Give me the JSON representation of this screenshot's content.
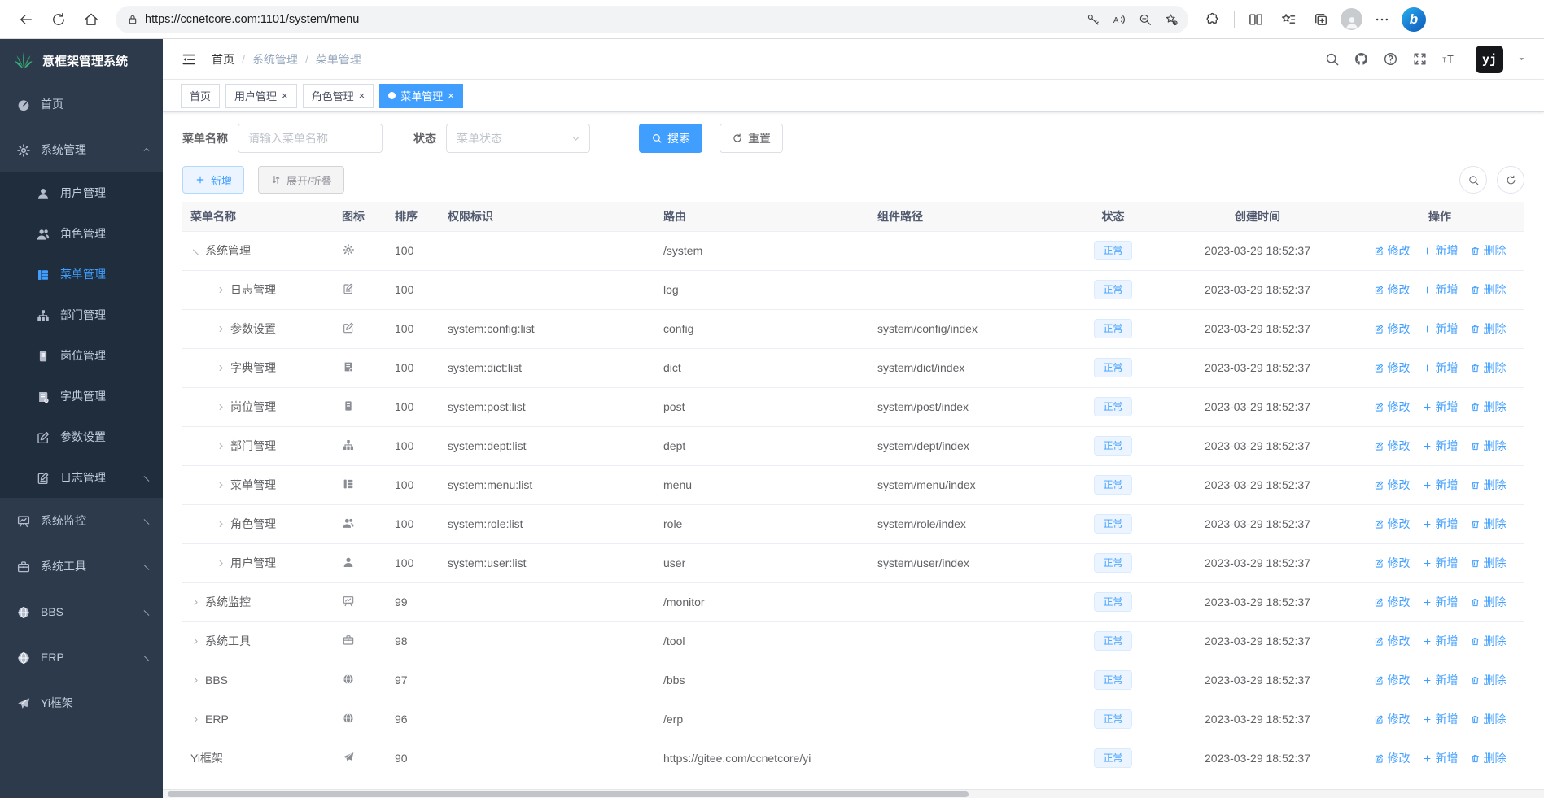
{
  "browser": {
    "url": "https://ccnetcore.com:1101/system/menu"
  },
  "app": {
    "title": "意框架管理系统"
  },
  "sidebar": {
    "items": [
      {
        "key": "home",
        "icon": "dashboard",
        "label": "首页"
      },
      {
        "key": "system",
        "icon": "gear",
        "label": "系统管理",
        "expanded": true,
        "caret": "up",
        "children": [
          {
            "key": "user",
            "icon": "user",
            "label": "用户管理"
          },
          {
            "key": "role",
            "icon": "users",
            "label": "角色管理"
          },
          {
            "key": "menu",
            "icon": "tree-table",
            "label": "菜单管理",
            "active": true
          },
          {
            "key": "dept",
            "icon": "tree",
            "label": "部门管理"
          },
          {
            "key": "post",
            "icon": "post",
            "label": "岗位管理"
          },
          {
            "key": "dict",
            "icon": "dict",
            "label": "字典管理"
          },
          {
            "key": "config",
            "icon": "edit",
            "label": "参数设置"
          },
          {
            "key": "log",
            "icon": "log",
            "label": "日志管理",
            "caret": "down"
          }
        ]
      },
      {
        "key": "monitor",
        "icon": "monitor",
        "label": "系统监控",
        "caret": "down"
      },
      {
        "key": "tool",
        "icon": "tool",
        "label": "系统工具",
        "caret": "down"
      },
      {
        "key": "bbs",
        "icon": "globe",
        "label": "BBS",
        "caret": "down"
      },
      {
        "key": "erp",
        "icon": "globe",
        "label": "ERP",
        "caret": "down"
      },
      {
        "key": "yi",
        "icon": "plane",
        "label": "Yi框架"
      }
    ]
  },
  "breadcrumb": [
    "首页",
    "系统管理",
    "菜单管理"
  ],
  "tabs": [
    {
      "key": "home",
      "label": "首页"
    },
    {
      "key": "user",
      "label": "用户管理",
      "closable": true
    },
    {
      "key": "role",
      "label": "角色管理",
      "closable": true
    },
    {
      "key": "menu",
      "label": "菜单管理",
      "closable": true,
      "active": true
    }
  ],
  "filters": {
    "name_label": "菜单名称",
    "name_placeholder": "请输入菜单名称",
    "status_label": "状态",
    "status_placeholder": "菜单状态",
    "search_label": "搜索",
    "reset_label": "重置"
  },
  "toolbar": {
    "add_label": "新增",
    "toggle_label": "展开/折叠"
  },
  "table": {
    "columns": [
      "菜单名称",
      "图标",
      "排序",
      "权限标识",
      "路由",
      "组件路径",
      "状态",
      "创建时间",
      "操作"
    ],
    "ops": [
      "修改",
      "新增",
      "删除"
    ],
    "rows": [
      {
        "label": "系统管理",
        "depth": 0,
        "toggle": "expanded",
        "icon": "gear",
        "order": "100",
        "perm": "",
        "route": "/system",
        "component": "",
        "status": "正常",
        "created": "2023-03-29 18:52:37"
      },
      {
        "label": "日志管理",
        "depth": 1,
        "toggle": "collapsed",
        "icon": "log",
        "order": "100",
        "perm": "",
        "route": "log",
        "component": "",
        "status": "正常",
        "created": "2023-03-29 18:52:37"
      },
      {
        "label": "参数设置",
        "depth": 1,
        "toggle": "collapsed",
        "icon": "edit",
        "order": "100",
        "perm": "system:config:list",
        "route": "config",
        "component": "system/config/index",
        "status": "正常",
        "created": "2023-03-29 18:52:37"
      },
      {
        "label": "字典管理",
        "depth": 1,
        "toggle": "collapsed",
        "icon": "dict",
        "order": "100",
        "perm": "system:dict:list",
        "route": "dict",
        "component": "system/dict/index",
        "status": "正常",
        "created": "2023-03-29 18:52:37"
      },
      {
        "label": "岗位管理",
        "depth": 1,
        "toggle": "collapsed",
        "icon": "post",
        "order": "100",
        "perm": "system:post:list",
        "route": "post",
        "component": "system/post/index",
        "status": "正常",
        "created": "2023-03-29 18:52:37"
      },
      {
        "label": "部门管理",
        "depth": 1,
        "toggle": "collapsed",
        "icon": "tree",
        "order": "100",
        "perm": "system:dept:list",
        "route": "dept",
        "component": "system/dept/index",
        "status": "正常",
        "created": "2023-03-29 18:52:37"
      },
      {
        "label": "菜单管理",
        "depth": 1,
        "toggle": "collapsed",
        "icon": "tree-table",
        "order": "100",
        "perm": "system:menu:list",
        "route": "menu",
        "component": "system/menu/index",
        "status": "正常",
        "created": "2023-03-29 18:52:37"
      },
      {
        "label": "角色管理",
        "depth": 1,
        "toggle": "collapsed",
        "icon": "users",
        "order": "100",
        "perm": "system:role:list",
        "route": "role",
        "component": "system/role/index",
        "status": "正常",
        "created": "2023-03-29 18:52:37"
      },
      {
        "label": "用户管理",
        "depth": 1,
        "toggle": "collapsed",
        "icon": "user",
        "order": "100",
        "perm": "system:user:list",
        "route": "user",
        "component": "system/user/index",
        "status": "正常",
        "created": "2023-03-29 18:52:37"
      },
      {
        "label": "系统监控",
        "depth": 0,
        "toggle": "collapsed",
        "icon": "monitor",
        "order": "99",
        "perm": "",
        "route": "/monitor",
        "component": "",
        "status": "正常",
        "created": "2023-03-29 18:52:37"
      },
      {
        "label": "系统工具",
        "depth": 0,
        "toggle": "collapsed",
        "icon": "tool",
        "order": "98",
        "perm": "",
        "route": "/tool",
        "component": "",
        "status": "正常",
        "created": "2023-03-29 18:52:37"
      },
      {
        "label": "BBS",
        "depth": 0,
        "toggle": "collapsed",
        "icon": "globe",
        "order": "97",
        "perm": "",
        "route": "/bbs",
        "component": "",
        "status": "正常",
        "created": "2023-03-29 18:52:37"
      },
      {
        "label": "ERP",
        "depth": 0,
        "toggle": "collapsed",
        "icon": "globe",
        "order": "96",
        "perm": "",
        "route": "/erp",
        "component": "",
        "status": "正常",
        "created": "2023-03-29 18:52:37"
      },
      {
        "label": "Yi框架",
        "depth": 0,
        "toggle": null,
        "icon": "plane",
        "order": "90",
        "perm": "",
        "route": "https://gitee.com/ccnetcore/yi",
        "component": "",
        "status": "正常",
        "created": "2023-03-29 18:52:37"
      }
    ]
  }
}
